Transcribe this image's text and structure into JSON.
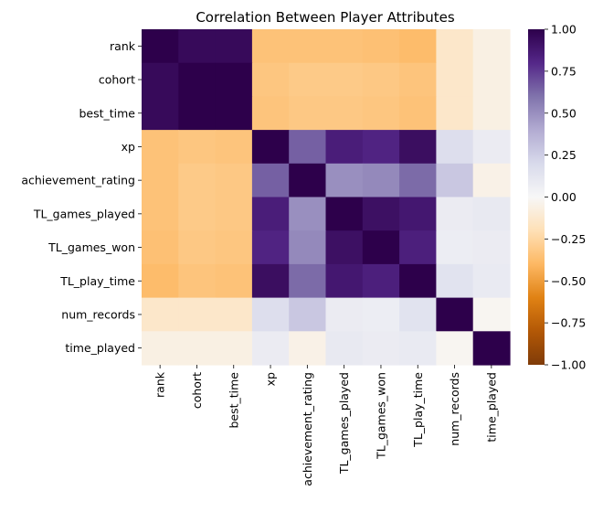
{
  "chart_data": {
    "type": "heatmap",
    "title": "Correlation Between Player Attributes",
    "xlabel": "",
    "ylabel": "",
    "rows": [
      "rank",
      "cohort",
      "best_time",
      "xp",
      "achievement_rating",
      "TL_games_played",
      "TL_games_won",
      "TL_play_time",
      "num_records",
      "time_played"
    ],
    "columns": [
      "rank",
      "cohort",
      "best_time",
      "xp",
      "achievement_rating",
      "TL_games_played",
      "TL_games_won",
      "TL_play_time",
      "num_records",
      "time_played"
    ],
    "values": [
      [
        1.0,
        0.95,
        0.95,
        -0.35,
        -0.35,
        -0.35,
        -0.36,
        -0.38,
        -0.14,
        -0.06
      ],
      [
        0.95,
        1.0,
        1.0,
        -0.33,
        -0.31,
        -0.31,
        -0.32,
        -0.34,
        -0.14,
        -0.06
      ],
      [
        0.95,
        1.0,
        1.0,
        -0.34,
        -0.32,
        -0.32,
        -0.33,
        -0.35,
        -0.14,
        -0.06
      ],
      [
        -0.35,
        -0.33,
        -0.34,
        1.0,
        0.65,
        0.85,
        0.82,
        0.93,
        0.17,
        0.08
      ],
      [
        -0.35,
        -0.31,
        -0.32,
        0.65,
        1.0,
        0.5,
        0.52,
        0.62,
        0.28,
        -0.05
      ],
      [
        -0.35,
        -0.31,
        -0.32,
        0.85,
        0.5,
        1.0,
        0.92,
        0.88,
        0.08,
        0.1
      ],
      [
        -0.36,
        -0.32,
        -0.33,
        0.82,
        0.52,
        0.92,
        1.0,
        0.84,
        0.07,
        0.08
      ],
      [
        -0.38,
        -0.34,
        -0.35,
        0.93,
        0.62,
        0.88,
        0.84,
        1.0,
        0.14,
        0.09
      ],
      [
        -0.14,
        -0.14,
        -0.14,
        0.17,
        0.28,
        0.08,
        0.07,
        0.14,
        1.0,
        -0.02
      ],
      [
        -0.06,
        -0.06,
        -0.06,
        0.08,
        -0.05,
        0.1,
        0.08,
        0.09,
        -0.02,
        1.0
      ]
    ],
    "vmin": -1.0,
    "vmax": 1.0,
    "colormap": "PuOr",
    "colorbar": {
      "ticks": [
        1.0,
        0.75,
        0.5,
        0.25,
        0.0,
        -0.25,
        -0.5,
        -0.75,
        -1.0
      ],
      "tick_labels": [
        "1.00",
        "0.75",
        "0.50",
        "0.25",
        "0.00",
        "−0.25",
        "−0.50",
        "−0.75",
        "−1.00"
      ]
    },
    "colormap_stops": [
      "#7f3b08",
      "#b35806",
      "#e08214",
      "#fdb863",
      "#fee0b6",
      "#f7f7f7",
      "#d8daeb",
      "#b2abd2",
      "#8073ac",
      "#542788",
      "#2d004b"
    ]
  }
}
